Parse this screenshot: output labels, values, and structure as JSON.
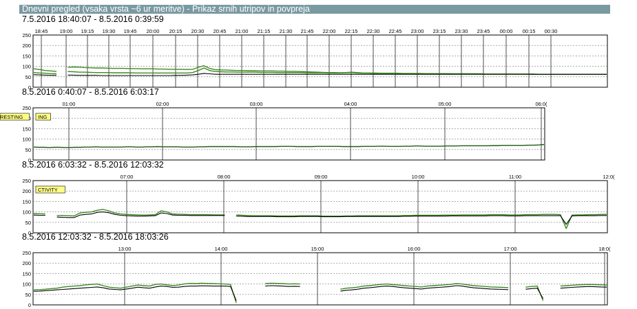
{
  "page": {
    "title": "Dnevni pregled (vsaka vrsta ~6 ur meritve) - Prikaz srnih utripov in povpreja"
  },
  "colors": {
    "title_bg": "#7a9aa2",
    "raw_series": "#3a8a1f",
    "avg_series": "#000000",
    "annotation_bg": "#ffff88"
  },
  "chart_data": [
    {
      "type": "line",
      "range_label": "7.5.2016 18:40:07 - 8.5.2016 0:39:59",
      "x_ticks": [
        "18:45",
        "19:00",
        "19:15",
        "19:30",
        "19:45",
        "20:00",
        "20:15",
        "20:30",
        "20:45",
        "21:00",
        "21:15",
        "21:30",
        "21:45",
        "22:00",
        "22:15",
        "22:30",
        "22:45",
        "23:00",
        "23:15",
        "23:30",
        "23:45",
        "00:00",
        "00:15",
        "00:30"
      ],
      "y_ticks": [
        0,
        50,
        100,
        150,
        200,
        250
      ],
      "ylim": [
        0,
        250
      ],
      "annotations": [],
      "series": [
        {
          "values": [
            88,
            85,
            80,
            78,
            76,
            null,
            95,
            97,
            96,
            94,
            93,
            92,
            92,
            91,
            90,
            90,
            90,
            89,
            89,
            88,
            88,
            88,
            87,
            87,
            86,
            86,
            86,
            85,
            86,
            95,
            103,
            90,
            84,
            83,
            82,
            81,
            80,
            80,
            79,
            79,
            78,
            78,
            78,
            77,
            77,
            76,
            76,
            75,
            74,
            73,
            72,
            71,
            70,
            70,
            69,
            70,
            72,
            70,
            68,
            68,
            68,
            67,
            67,
            67,
            67,
            66,
            66,
            66,
            66,
            65,
            65,
            65,
            65,
            65,
            64,
            64,
            64,
            64,
            64,
            64,
            63,
            63,
            63,
            63,
            63,
            63,
            63,
            63,
            63,
            62,
            62,
            62,
            62,
            62,
            62,
            62,
            62,
            62,
            62,
            62,
            62,
            62
          ]
        },
        {
          "values": [
            70,
            68,
            67,
            65,
            64,
            null,
            75,
            74,
            72,
            72,
            71,
            70,
            70,
            70,
            69,
            69,
            69,
            69,
            68,
            68,
            68,
            68,
            68,
            68,
            68,
            68,
            68,
            68,
            70,
            80,
            92,
            80,
            75,
            74,
            73,
            73,
            72,
            72,
            72,
            72,
            71,
            71,
            71,
            70,
            70,
            70,
            70,
            70,
            69,
            69,
            69,
            69,
            68,
            68,
            68,
            69,
            70,
            68,
            67,
            67,
            66,
            66,
            66,
            66,
            66,
            65,
            65,
            65,
            65,
            65,
            65,
            64,
            64,
            64,
            64,
            64,
            64,
            64,
            64,
            63,
            63,
            63,
            63,
            63,
            63,
            63,
            63,
            63,
            62,
            62,
            62,
            62,
            62,
            62,
            62,
            62,
            62,
            62,
            62,
            62,
            62,
            62
          ]
        },
        {
          "values": [
            60,
            59,
            58,
            57,
            57,
            null,
            58,
            58,
            57,
            57,
            57,
            57,
            56,
            56,
            56,
            56,
            56,
            56,
            56,
            56,
            56,
            56,
            56,
            56,
            56,
            57,
            57,
            58,
            59,
            62,
            66,
            64,
            62,
            62,
            62,
            62,
            62,
            62,
            62,
            62,
            62,
            62,
            62,
            62,
            62,
            62,
            62,
            62,
            62,
            62,
            62,
            62,
            62,
            62,
            62,
            62,
            62,
            62,
            62,
            62,
            62,
            62,
            62,
            62,
            62,
            62,
            62,
            62,
            62,
            62,
            62,
            62,
            62,
            62,
            62,
            62,
            62,
            62,
            62,
            62,
            62,
            62,
            62,
            62,
            62,
            62,
            62,
            62,
            62,
            62,
            62,
            62,
            62,
            62,
            62,
            62,
            62,
            62,
            62,
            62,
            62,
            62
          ]
        }
      ]
    },
    {
      "type": "line",
      "range_label": "8.5.2016 0:40:07 - 8.5.2016 6:03:17",
      "x_ticks": [
        "01:00",
        "02:00",
        "03:00",
        "04:00",
        "05:00",
        "06:0("
      ],
      "y_ticks": [
        0,
        50,
        100,
        150,
        200,
        250
      ],
      "ylim": [
        0,
        250
      ],
      "annotations": [
        "ING",
        "RESTING"
      ],
      "series": [
        {
          "values": [
            62,
            61,
            61,
            60,
            61,
            61,
            60,
            60,
            61,
            61,
            62,
            62,
            63,
            62,
            62,
            62,
            62,
            62,
            63,
            63,
            62,
            62,
            63,
            63,
            64,
            63,
            63,
            63,
            63,
            62,
            62,
            62,
            63,
            63,
            64,
            64,
            64,
            64,
            64,
            64,
            63,
            63,
            63,
            64,
            64,
            64,
            64,
            64,
            65,
            65,
            65,
            64,
            64,
            64,
            64,
            65,
            65,
            65,
            65,
            65,
            64,
            64,
            64,
            64,
            65,
            65,
            65,
            66,
            66,
            65,
            65,
            65,
            66,
            66,
            67,
            67,
            66,
            66,
            66,
            66,
            67,
            67,
            67,
            68,
            68,
            68,
            68,
            68,
            68,
            69,
            69,
            70,
            70,
            70,
            70,
            70,
            71,
            71,
            72,
            74
          ]
        }
      ]
    },
    {
      "type": "line",
      "range_label": "8.5.2016 6:03:32 - 8.5.2016 12:03:32",
      "x_ticks": [
        "07:00",
        "08:00",
        "09:00",
        "10:00",
        "11:00",
        "12:0("
      ],
      "y_ticks": [
        0,
        50,
        100,
        150,
        200,
        250
      ],
      "ylim": [
        0,
        250
      ],
      "annotations": [
        "CTIVITY"
      ],
      "series": [
        {
          "values": [
            92,
            91,
            90,
            null,
            82,
            83,
            82,
            81,
            95,
            98,
            100,
            108,
            112,
            105,
            95,
            90,
            88,
            87,
            86,
            85,
            86,
            87,
            105,
            100,
            90,
            89,
            88,
            87,
            87,
            87,
            87,
            86,
            86,
            86,
            null,
            86,
            84,
            83,
            82,
            82,
            82,
            82,
            81,
            81,
            81,
            81,
            82,
            82,
            82,
            82,
            80,
            80,
            80,
            80,
            81,
            81,
            82,
            82,
            82,
            82,
            82,
            82,
            82,
            82,
            83,
            83,
            84,
            84,
            84,
            84,
            84,
            85,
            85,
            85,
            86,
            86,
            86,
            86,
            86,
            87,
            87,
            87,
            86,
            86,
            86,
            87,
            87,
            87,
            88,
            88,
            88,
            87,
            20,
            85,
            86,
            86,
            87,
            87,
            88,
            88
          ]
        },
        {
          "values": [
            85,
            84,
            84,
            null,
            75,
            74,
            73,
            73,
            85,
            88,
            90,
            98,
            100,
            96,
            88,
            84,
            82,
            81,
            80,
            80,
            81,
            82,
            95,
            92,
            85,
            84,
            84,
            83,
            83,
            83,
            83,
            83,
            83,
            83,
            null,
            80,
            79,
            78,
            78,
            78,
            78,
            78,
            77,
            77,
            77,
            77,
            78,
            78,
            78,
            78,
            77,
            77,
            77,
            77,
            78,
            78,
            78,
            78,
            78,
            78,
            78,
            78,
            78,
            78,
            79,
            79,
            80,
            80,
            80,
            80,
            80,
            80,
            81,
            81,
            81,
            81,
            81,
            81,
            81,
            82,
            82,
            82,
            81,
            81,
            81,
            82,
            82,
            82,
            82,
            82,
            82,
            82,
            40,
            81,
            82,
            82,
            82,
            82,
            83,
            83
          ]
        }
      ]
    },
    {
      "type": "line",
      "range_label": "8.5.2016 12:03:32 - 8.5.2016 18:03:26",
      "x_ticks": [
        "13:00",
        "14:00",
        "15:00",
        "16:00",
        "17:00",
        "18:0("
      ],
      "y_ticks": [
        0,
        50,
        100,
        150,
        200,
        250
      ],
      "ylim": [
        0,
        250
      ],
      "annotations": [],
      "series": [
        {
          "values": [
            72,
            73,
            75,
            78,
            80,
            85,
            88,
            90,
            92,
            96,
            98,
            100,
            92,
            85,
            82,
            80,
            85,
            90,
            95,
            92,
            90,
            98,
            100,
            96,
            92,
            95,
            100,
            103,
            102,
            104,
            103,
            102,
            101,
            100,
            98,
            10,
            null,
            null,
            null,
            null,
            102,
            104,
            103,
            102,
            100,
            101,
            100,
            null,
            70,
            null,
            40,
            null,
            null,
            75,
            80,
            82,
            85,
            90,
            92,
            95,
            98,
            100,
            97,
            95,
            92,
            90,
            88,
            86,
            90,
            92,
            94,
            96,
            98,
            102,
            100,
            96,
            92,
            90,
            88,
            86,
            85,
            84,
            83,
            null,
            null,
            85,
            88,
            90,
            20,
            null,
            null,
            90,
            92,
            94,
            96,
            97,
            98,
            97,
            96,
            95
          ]
        },
        {
          "values": [
            65,
            66,
            68,
            70,
            72,
            74,
            76,
            78,
            80,
            82,
            84,
            86,
            82,
            76,
            74,
            72,
            76,
            80,
            85,
            82,
            80,
            86,
            90,
            88,
            84,
            85,
            88,
            90,
            90,
            91,
            91,
            90,
            90,
            90,
            88,
            20,
            null,
            null,
            null,
            null,
            90,
            92,
            91,
            90,
            88,
            89,
            88,
            null,
            60,
            null,
            45,
            null,
            null,
            66,
            70,
            72,
            75,
            80,
            82,
            85,
            88,
            90,
            88,
            85,
            82,
            80,
            78,
            76,
            80,
            82,
            84,
            86,
            88,
            92,
            90,
            86,
            82,
            80,
            78,
            76,
            75,
            74,
            73,
            null,
            null,
            75,
            78,
            80,
            30,
            null,
            null,
            80,
            82,
            84,
            86,
            87,
            88,
            87,
            86,
            85
          ]
        }
      ]
    }
  ]
}
